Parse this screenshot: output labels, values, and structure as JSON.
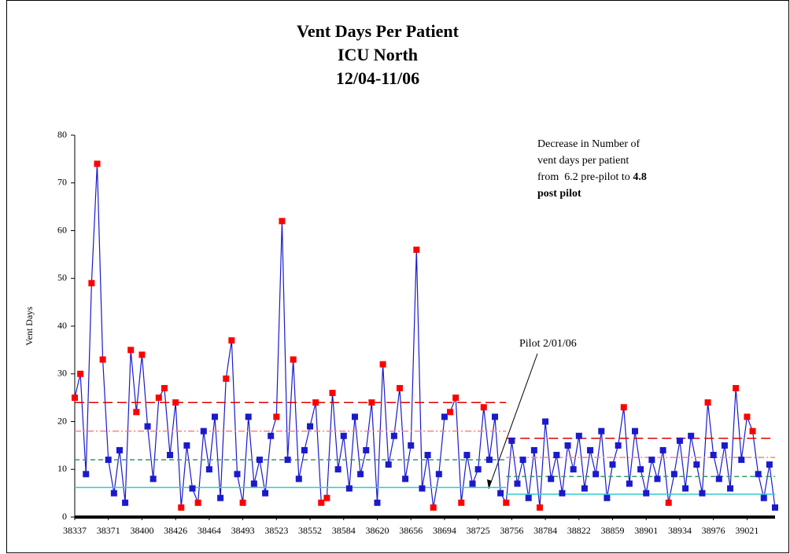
{
  "chart_data": {
    "type": "line",
    "title": "Vent Days Per Patient",
    "subtitle": "ICU North",
    "subtitle2": "12/04-11/06",
    "ylabel": "Vent Days",
    "ylim": [
      0,
      80
    ],
    "yticks": [
      0,
      10,
      20,
      30,
      40,
      50,
      60,
      70,
      80
    ],
    "categories": [
      "38337",
      null,
      null,
      null,
      null,
      null,
      "38371",
      null,
      null,
      null,
      null,
      null,
      "38400",
      null,
      null,
      null,
      null,
      null,
      "38426",
      null,
      null,
      null,
      null,
      null,
      "38464",
      null,
      null,
      null,
      null,
      null,
      "38493",
      null,
      null,
      null,
      null,
      null,
      "38523",
      null,
      null,
      null,
      null,
      null,
      "38552",
      null,
      null,
      null,
      null,
      null,
      "38584",
      null,
      null,
      null,
      null,
      null,
      "38620",
      null,
      null,
      null,
      null,
      null,
      "38656",
      null,
      null,
      null,
      null,
      null,
      "38694",
      null,
      null,
      null,
      null,
      null,
      "38725",
      null,
      null,
      null,
      null,
      null,
      "38756",
      null,
      null,
      null,
      null,
      null,
      "38784",
      null,
      null,
      null,
      null,
      null,
      "38822",
      null,
      null,
      null,
      null,
      null,
      "38859",
      null,
      null,
      null,
      null,
      null,
      "38901",
      null,
      null,
      null,
      null,
      null,
      "38934",
      null,
      null,
      null,
      null,
      null,
      "38976",
      null,
      null,
      null,
      null,
      null,
      "39021",
      null,
      null,
      null,
      null,
      null
    ],
    "series": [
      {
        "color": "#1a1acc",
        "values": [
          25,
          30,
          9,
          49,
          74,
          33,
          12,
          5,
          14,
          3,
          35,
          22,
          34,
          19,
          8,
          25,
          27,
          13,
          24,
          2,
          15,
          6,
          3,
          18,
          10,
          21,
          4,
          29,
          37,
          9,
          3,
          21,
          7,
          12,
          5,
          17,
          21,
          62,
          12,
          33,
          8,
          14,
          19,
          24,
          3,
          4,
          26,
          10,
          17,
          6,
          21,
          9,
          14,
          24,
          3,
          32,
          11,
          17,
          27,
          8,
          15,
          56,
          6,
          13,
          2,
          9,
          21,
          22,
          25,
          3,
          13,
          7,
          10,
          23,
          12,
          21,
          5,
          3,
          16,
          7,
          12,
          4,
          14,
          2,
          20,
          8,
          13,
          5,
          15,
          10,
          17,
          6,
          14,
          9,
          18,
          4,
          11,
          15,
          23,
          7,
          18,
          10,
          5,
          12,
          8,
          14,
          3,
          9,
          16,
          6,
          17,
          11,
          5,
          24,
          13,
          8,
          15,
          6,
          27,
          12,
          21,
          18,
          9,
          4,
          11,
          2
        ],
        "marker_colors": [
          "red",
          "red",
          "blue",
          "red",
          "red",
          "red",
          "blue",
          "blue",
          "blue",
          "blue",
          "red",
          "red",
          "red",
          "blue",
          "blue",
          "red",
          "red",
          "blue",
          "red",
          "red",
          "blue",
          "blue",
          "red",
          "blue",
          "blue",
          "blue",
          "blue",
          "red",
          "red",
          "blue",
          "red",
          "blue",
          "blue",
          "blue",
          "blue",
          "blue",
          "red",
          "red",
          "blue",
          "red",
          "blue",
          "blue",
          "blue",
          "red",
          "red",
          "red",
          "red",
          "blue",
          "blue",
          "blue",
          "blue",
          "blue",
          "blue",
          "red",
          "blue",
          "red",
          "blue",
          "blue",
          "red",
          "blue",
          "blue",
          "red",
          "blue",
          "blue",
          "red",
          "blue",
          "blue",
          "red",
          "red",
          "red",
          "blue",
          "blue",
          "blue",
          "red",
          "blue",
          "blue",
          "blue",
          "red",
          "blue",
          "blue",
          "blue",
          "blue",
          "blue",
          "red",
          "blue",
          "blue",
          "blue",
          "blue",
          "blue",
          "blue",
          "blue",
          "blue",
          "blue",
          "blue",
          "blue",
          "blue",
          "blue",
          "blue",
          "red",
          "blue",
          "blue",
          "blue",
          "blue",
          "blue",
          "blue",
          "blue",
          "red",
          "blue",
          "blue",
          "blue",
          "blue",
          "blue",
          "blue",
          "red",
          "blue",
          "blue",
          "blue",
          "blue",
          "red",
          "blue",
          "red",
          "red",
          "blue",
          "blue",
          "blue",
          "blue"
        ]
      }
    ],
    "reference_lines": [
      {
        "value": 24,
        "from": 0,
        "to": 77,
        "color": "#dd0000",
        "dash": "12 6"
      },
      {
        "value": 18,
        "from": 0,
        "to": 77,
        "color": "#ff8080",
        "dash": "8 3 2 3"
      },
      {
        "value": 12,
        "from": 0,
        "to": 77,
        "color": "#339966",
        "dash": "6 4"
      },
      {
        "value": 6.2,
        "from": 0,
        "to": 77,
        "color": "#33cccc",
        "dash": "none"
      },
      {
        "value": 16.5,
        "from": 77,
        "to": 125,
        "color": "#dd0000",
        "dash": "12 6"
      },
      {
        "value": 12.5,
        "from": 77,
        "to": 125,
        "color": "#ff8080",
        "dash": "8 3 2 3"
      },
      {
        "value": 8.5,
        "from": 77,
        "to": 125,
        "color": "#339966",
        "dash": "6 4"
      },
      {
        "value": 4.8,
        "from": 77,
        "to": 125,
        "color": "#33cccc",
        "dash": "none"
      }
    ],
    "annotations": {
      "note_line1": "Decrease in Number of",
      "note_line2": "vent days per patient",
      "note_line3": "from  6.2 pre-pilot to ",
      "note_bold3": "4.8",
      "note_line4": "post pilot",
      "pilot": "Pilot 2/01/06"
    }
  }
}
